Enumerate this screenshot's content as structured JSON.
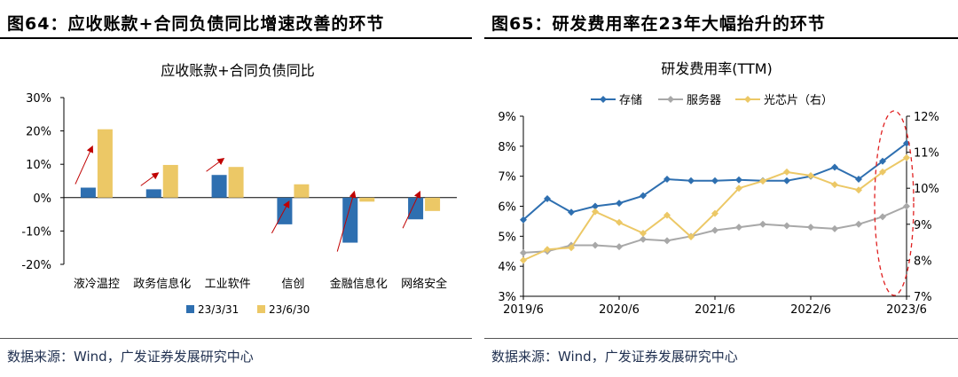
{
  "left": {
    "figure_title": "图64：应收账款+合同负债同比增速改善的环节",
    "source": "数据来源：Wind，广发证券发展研究中心",
    "chart_data": {
      "type": "bar",
      "title": "应收账款+合同负债同比",
      "categories": [
        "液冷温控",
        "政务信息化",
        "工业软件",
        "信创",
        "金融信息化",
        "网络安全"
      ],
      "series": [
        {
          "name": "23/3/31",
          "color": "#2e6fb0",
          "values": [
            3.0,
            2.5,
            6.8,
            -8.0,
            -13.5,
            -6.5
          ]
        },
        {
          "name": "23/6/30",
          "color": "#ecc866",
          "values": [
            20.5,
            9.8,
            9.2,
            4.0,
            -1.2,
            -4.0
          ]
        }
      ],
      "ylim": [
        -20,
        30
      ],
      "yticks": [
        -20,
        -10,
        0,
        10,
        20,
        30
      ],
      "ytick_labels": [
        "-20%",
        "-10%",
        "0%",
        "10%",
        "20%",
        "30%"
      ],
      "annotation": "red arrows indicate improvement from 23/3/31 to 23/6/30",
      "arrow_color": "#c00000",
      "legend_position": "bottom"
    }
  },
  "right": {
    "figure_title": "图65：研发费用率在23年大幅抬升的环节",
    "source": "数据来源：Wind，广发证券发展研究中心",
    "chart_data": {
      "type": "line",
      "title": "研发费用率(TTM)",
      "x_labels": [
        "2019/6",
        "2020/6",
        "2021/6",
        "2022/6",
        "2023/6"
      ],
      "n_points": 17,
      "series": [
        {
          "name": "存储",
          "axis": "left",
          "color": "#2e6fb0",
          "marker": "diamond",
          "values": [
            5.55,
            6.25,
            5.8,
            6.0,
            6.1,
            6.35,
            6.9,
            6.85,
            6.85,
            6.88,
            6.85,
            6.85,
            7.0,
            7.3,
            6.9,
            7.5,
            8.1
          ]
        },
        {
          "name": "服务器",
          "axis": "left",
          "color": "#a8a8a8",
          "marker": "diamond",
          "values": [
            4.45,
            4.5,
            4.7,
            4.7,
            4.65,
            4.9,
            4.85,
            5.0,
            5.2,
            5.3,
            5.4,
            5.35,
            5.3,
            5.25,
            5.4,
            5.65,
            6.0
          ]
        },
        {
          "name": "光芯片（右）",
          "axis": "right",
          "color": "#ecc866",
          "marker": "diamond",
          "values": [
            8.0,
            8.3,
            8.35,
            9.35,
            9.05,
            8.75,
            9.25,
            8.65,
            9.3,
            10.0,
            10.2,
            10.45,
            10.35,
            10.1,
            9.95,
            10.45,
            10.85
          ]
        }
      ],
      "y_left": {
        "lim": [
          3,
          9
        ],
        "ticks": [
          3,
          4,
          5,
          6,
          7,
          8,
          9
        ],
        "tick_labels": [
          "3%",
          "4%",
          "5%",
          "6%",
          "7%",
          "8%",
          "9%"
        ]
      },
      "y_right": {
        "lim": [
          7,
          12
        ],
        "ticks": [
          7,
          8,
          9,
          10,
          11,
          12
        ],
        "tick_labels": [
          "7%",
          "8%",
          "9%",
          "10%",
          "11%",
          "12%"
        ]
      },
      "highlight": "red dashed ellipse around 2023 values",
      "highlight_color": "#e02020",
      "legend_position": "top"
    }
  }
}
